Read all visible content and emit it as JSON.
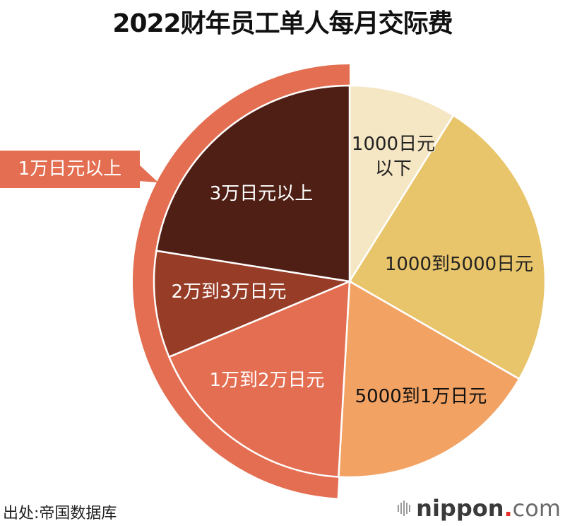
{
  "title": "2022财年员工单人每月交际费",
  "chart_data": {
    "type": "pie",
    "title": "2022财年员工单人每月交际费",
    "start_angle_deg": 0,
    "direction": "clockwise",
    "unit": "percent (estimated from slice angles)",
    "categories": [
      "1000日元以下",
      "1000到5000日元",
      "5000到1万日元",
      "1万到2万日元",
      "2万到3万日元",
      "3万日元以上"
    ],
    "values": [
      8.9,
      24.4,
      17.6,
      17.8,
      8.8,
      22.5
    ],
    "colors": [
      "#f5e6c4",
      "#e8c46a",
      "#f2a263",
      "#e46e51",
      "#963c27",
      "#4f1f15"
    ],
    "labels": [
      {
        "line1": "1000日元",
        "line2": "以下",
        "color": "#222222"
      },
      {
        "line1": "1000到5000日元",
        "color": "#222222"
      },
      {
        "line1": "5000到1万日元",
        "color": "#111111"
      },
      {
        "line1": "1万到2万日元",
        "color": "#ffffff"
      },
      {
        "line1": "2万到3万日元",
        "color": "#ffffff"
      },
      {
        "line1": "3万日元以上",
        "color": "#ffffff"
      }
    ],
    "group_annotation": {
      "label": "1万日元以上",
      "covers": [
        "1万到2万日元",
        "2万到3万日元",
        "3万日元以上"
      ],
      "value": 49.1,
      "color": "#e46e51"
    },
    "legend": "none (labels inside slices)",
    "grid": false
  },
  "callout": {
    "label": "1万日元以上"
  },
  "footer": {
    "source": "出处:帝国数据库",
    "brand_main": "nippon",
    "brand_dot": ".",
    "brand_tld": "com"
  }
}
